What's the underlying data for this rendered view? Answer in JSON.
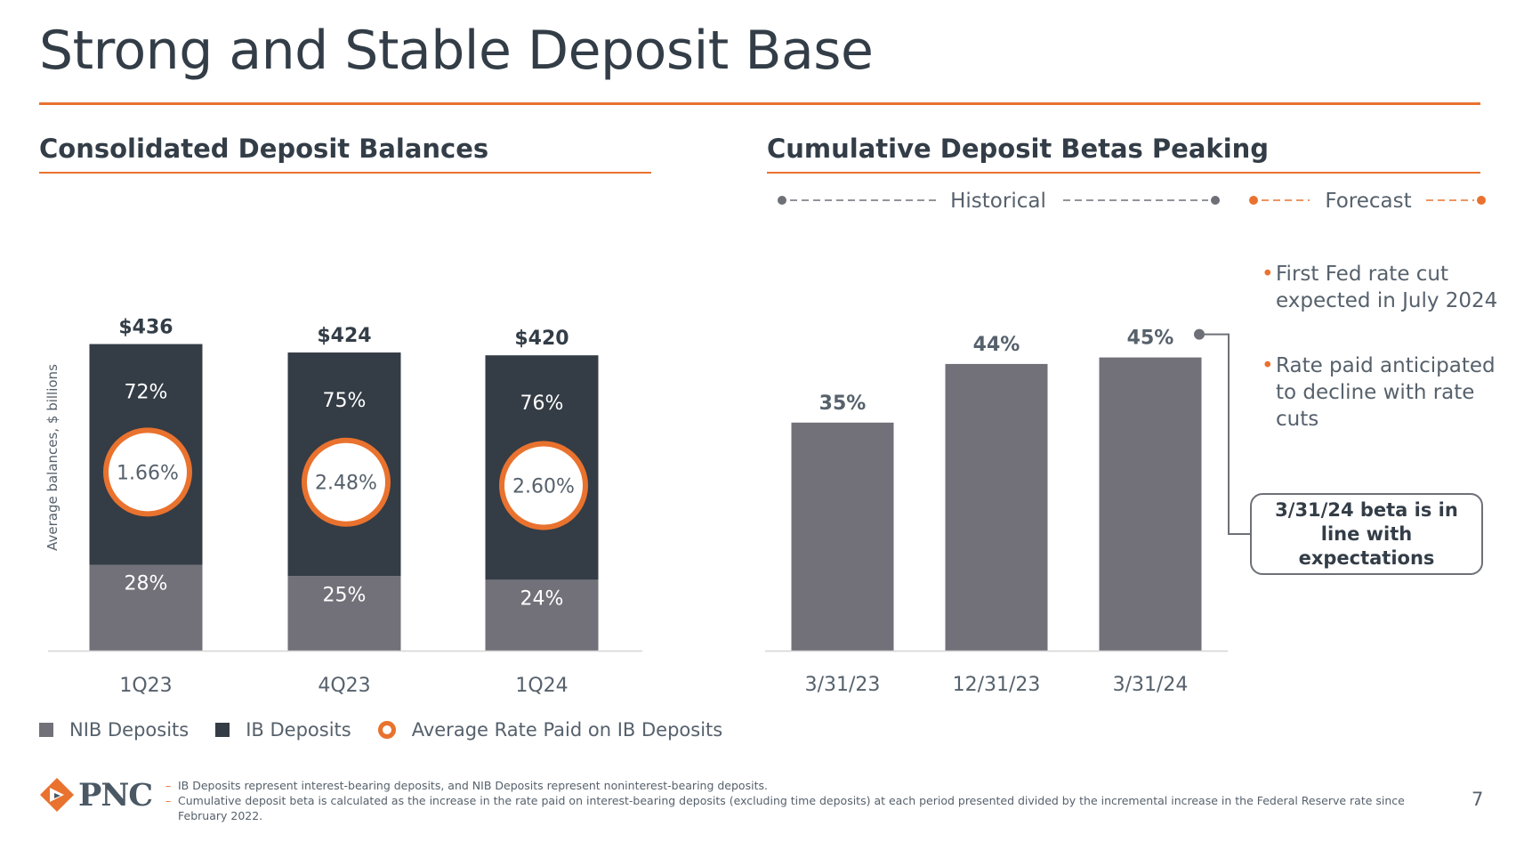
{
  "title": "Strong and Stable Deposit Base",
  "colors": {
    "accent": "#e9722e",
    "nib_deposits": "#727179",
    "ib_deposits": "#343c45",
    "beta_bars": "#727179",
    "text": "#333d47"
  },
  "left_section_title": "Consolidated Deposit Balances",
  "right_section_title": "Cumulative Deposit Betas Peaking",
  "chart_data": [
    {
      "type": "bar",
      "stacked": true,
      "title": "Consolidated Deposit Balances",
      "ylabel": "Average balances, $ billions",
      "categories": [
        "1Q23",
        "4Q23",
        "1Q24"
      ],
      "totals": [
        436,
        424,
        420
      ],
      "total_labels": [
        "$436",
        "$424",
        "$420"
      ],
      "series": [
        {
          "name": "NIB Deposits",
          "share_percent": [
            28,
            25,
            24
          ],
          "labels": [
            "28%",
            "25%",
            "24%"
          ]
        },
        {
          "name": "IB Deposits",
          "share_percent": [
            72,
            75,
            76
          ],
          "labels": [
            "72%",
            "75%",
            "76%"
          ]
        }
      ],
      "rate_series": {
        "name": "Average Rate Paid on IB Deposits",
        "values_percent": [
          1.66,
          2.48,
          2.6
        ],
        "labels": [
          "1.66%",
          "2.48%",
          "2.60%"
        ]
      },
      "legend_placement": "bottom"
    },
    {
      "type": "bar",
      "title": "Cumulative Deposit Betas Peaking",
      "categories": [
        "3/31/23",
        "12/31/23",
        "3/31/24"
      ],
      "values_percent": [
        35,
        44,
        45
      ],
      "labels": [
        "35%",
        "44%",
        "45%"
      ],
      "period_labels": {
        "historical": "Historical",
        "forecast": "Forecast"
      },
      "ylim": [
        0,
        50
      ]
    }
  ],
  "bullets": [
    "First Fed rate cut expected in July 2024",
    "Rate paid anticipated to decline with rate cuts"
  ],
  "callout": "3/31/24  beta is in line with expectations",
  "legend": {
    "nib": "NIB Deposits",
    "ib": "IB Deposits",
    "rate": "Average Rate Paid on IB Deposits"
  },
  "logo_text": "PNC",
  "footnotes": [
    "IB Deposits represent interest-bearing deposits, and NIB Deposits represent noninterest-bearing deposits.",
    "Cumulative deposit beta is calculated as the increase in the rate paid on interest-bearing deposits (excluding time deposits) at each period presented divided by the incremental increase in the Federal Reserve rate since February 2022."
  ],
  "page_number": "7"
}
